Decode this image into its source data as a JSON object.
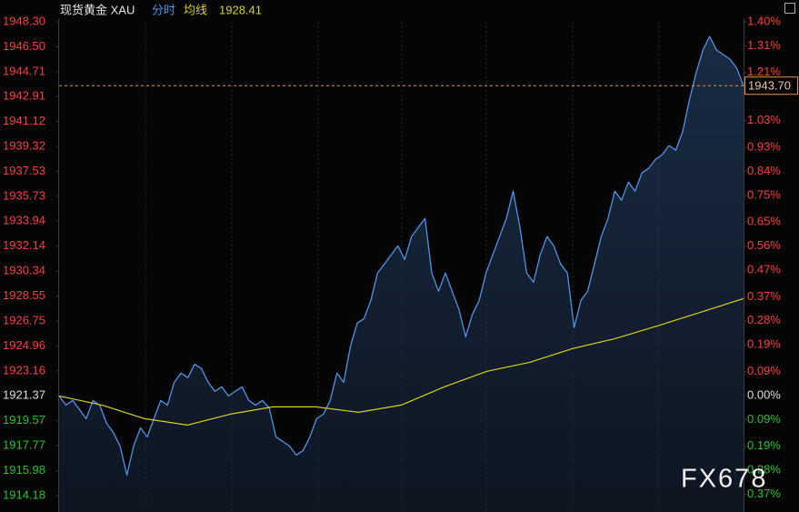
{
  "header": {
    "symbol": "现货黄金 XAU",
    "mode": "分时",
    "avg_label": "均线",
    "avg_value": 1928.41
  },
  "chart_data": {
    "type": "line",
    "ylim": [
      1913.0,
      1948.3
    ],
    "yticks": [
      {
        "value": 1948.3,
        "label": "1948.30"
      },
      {
        "value": 1946.5,
        "label": "1946.50"
      },
      1944.71,
      1942.91,
      1941.12,
      1939.32,
      1937.53,
      1935.73,
      1933.94,
      1932.14,
      1930.34,
      1928.55,
      1926.75,
      1924.96,
      1923.16,
      1921.37,
      1919.57,
      1917.77,
      1915.98,
      1914.18
    ],
    "y2lim": [
      -0.436,
      1.4
    ],
    "y2ticks": [
      {
        "value": 1.4,
        "label": "1.40%"
      },
      {
        "value": 1.31,
        "label": "1.31%"
      },
      {
        "value": 1.21,
        "label": "1.21%"
      },
      {
        "value": 1.03,
        "label": "1.03%"
      },
      {
        "value": 0.93,
        "label": "0.93%"
      },
      {
        "value": 0.84,
        "label": "0.84%"
      },
      {
        "value": 0.75,
        "label": "0.75%"
      },
      {
        "value": 0.65,
        "label": "0.65%"
      },
      {
        "value": 0.56,
        "label": "0.56%"
      },
      {
        "value": 0.47,
        "label": "0.47%"
      },
      {
        "value": 0.37,
        "label": "0.37%"
      },
      {
        "value": 0.28,
        "label": "0.28%"
      },
      {
        "value": 0.19,
        "label": "0.19%"
      },
      {
        "value": 0.09,
        "label": "0.09%"
      },
      {
        "value": 0,
        "label": "0.00%"
      },
      {
        "value": -0.09,
        "label": "0.09%"
      },
      {
        "value": -0.19,
        "label": "0.19%"
      },
      {
        "value": -0.28,
        "label": "0.28%"
      },
      {
        "value": -0.37,
        "label": "0.37%"
      }
    ],
    "up_color": "#ff3b3b",
    "down_color": "#25c425",
    "flat_color": "#dddddd",
    "series": [
      {
        "name": "分时",
        "color": "#4f93e6",
        "area": true,
        "values": [
          1921.36,
          1920.7,
          1921.03,
          1920.38,
          1919.72,
          1921.03,
          1920.7,
          1919.39,
          1918.74,
          1917.75,
          1915.66,
          1917.75,
          1919.06,
          1918.41,
          1919.72,
          1921.03,
          1920.7,
          1922.34,
          1923.0,
          1922.67,
          1923.65,
          1923.33,
          1922.34,
          1921.69,
          1922.01,
          1921.36,
          1921.69,
          1922.01,
          1921.03,
          1920.7,
          1921.03,
          1920.51,
          1918.41,
          1918.08,
          1917.75,
          1917.1,
          1917.43,
          1918.41,
          1919.72,
          1920.05,
          1921.03,
          1923.0,
          1922.34,
          1924.96,
          1926.6,
          1926.93,
          1928.24,
          1930.21,
          1930.86,
          1931.52,
          1932.17,
          1931.19,
          1932.83,
          1933.49,
          1934.14,
          1930.21,
          1928.9,
          1930.21,
          1928.9,
          1927.59,
          1925.62,
          1927.26,
          1928.24,
          1930.21,
          1931.52,
          1932.83,
          1934.14,
          1936.11,
          1933.49,
          1930.21,
          1929.55,
          1931.52,
          1932.83,
          1932.17,
          1930.86,
          1930.21,
          1926.28,
          1928.24,
          1928.9,
          1930.86,
          1932.83,
          1934.14,
          1936.11,
          1935.45,
          1936.76,
          1936.11,
          1937.42,
          1937.75,
          1938.4,
          1938.73,
          1939.39,
          1939.06,
          1940.37,
          1942.66,
          1944.63,
          1946.27,
          1947.25,
          1946.27,
          1945.94,
          1945.61,
          1944.96,
          1943.7
        ]
      },
      {
        "name": "均线",
        "color": "#d8d21c",
        "values": [
          1921.36,
          1920.7,
          1919.72,
          1919.26,
          1920.05,
          1920.57,
          1920.57,
          1920.18,
          1920.7,
          1922.01,
          1923.13,
          1923.78,
          1924.77,
          1925.49,
          1926.41,
          1927.39,
          1928.37
        ]
      }
    ],
    "last_price_label": "1943.70",
    "last_line_color": "#e8963a",
    "watermark": "FX678"
  }
}
